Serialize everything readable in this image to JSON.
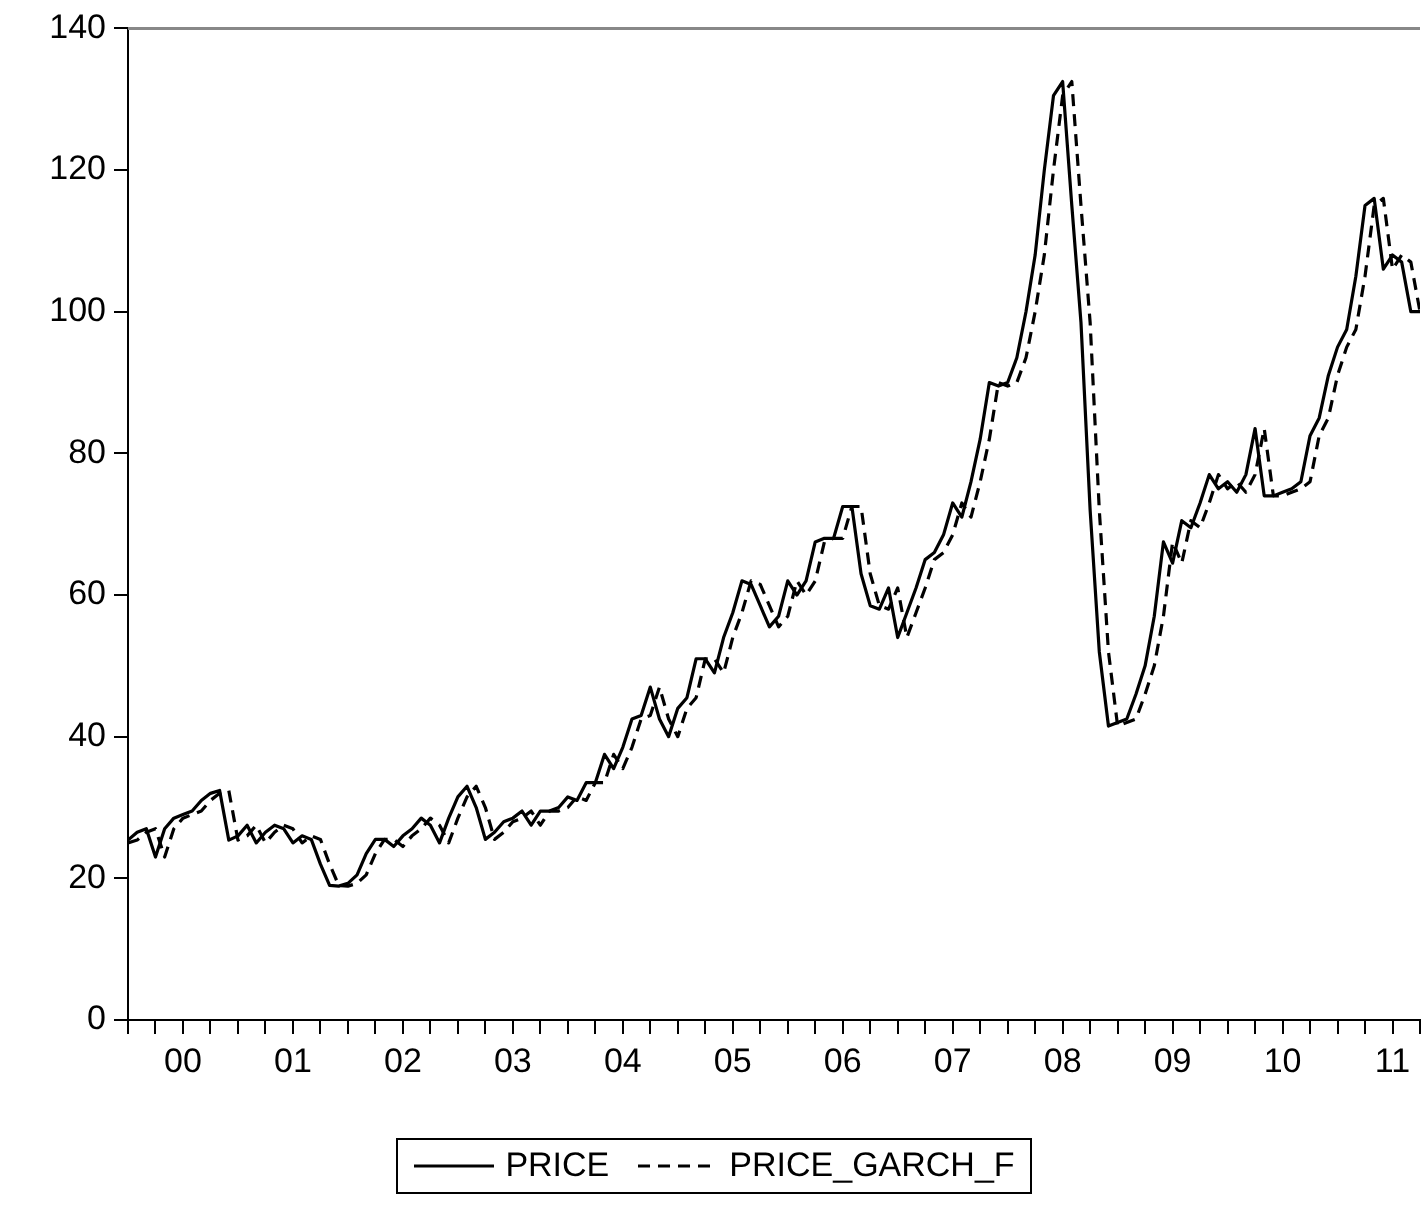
{
  "chart_data": {
    "type": "line",
    "legend": "bottom",
    "x": [
      "2000-01",
      "2000-02",
      "2000-03",
      "2000-04",
      "2000-05",
      "2000-06",
      "2000-07",
      "2000-08",
      "2000-09",
      "2000-10",
      "2000-11",
      "2000-12",
      "2001-01",
      "2001-02",
      "2001-03",
      "2001-04",
      "2001-05",
      "2001-06",
      "2001-07",
      "2001-08",
      "2001-09",
      "2001-10",
      "2001-11",
      "2001-12",
      "2002-01",
      "2002-02",
      "2002-03",
      "2002-04",
      "2002-05",
      "2002-06",
      "2002-07",
      "2002-08",
      "2002-09",
      "2002-10",
      "2002-11",
      "2002-12",
      "2003-01",
      "2003-02",
      "2003-03",
      "2003-04",
      "2003-05",
      "2003-06",
      "2003-07",
      "2003-08",
      "2003-09",
      "2003-10",
      "2003-11",
      "2003-12",
      "2004-01",
      "2004-02",
      "2004-03",
      "2004-04",
      "2004-05",
      "2004-06",
      "2004-07",
      "2004-08",
      "2004-09",
      "2004-10",
      "2004-11",
      "2004-12",
      "2005-01",
      "2005-02",
      "2005-03",
      "2005-04",
      "2005-05",
      "2005-06",
      "2005-07",
      "2005-08",
      "2005-09",
      "2005-10",
      "2005-11",
      "2005-12",
      "2006-01",
      "2006-02",
      "2006-03",
      "2006-04",
      "2006-05",
      "2006-06",
      "2006-07",
      "2006-08",
      "2006-09",
      "2006-10",
      "2006-11",
      "2006-12",
      "2007-01",
      "2007-02",
      "2007-03",
      "2007-04",
      "2007-05",
      "2007-06",
      "2007-07",
      "2007-08",
      "2007-09",
      "2007-10",
      "2007-11",
      "2007-12",
      "2008-01",
      "2008-02",
      "2008-03",
      "2008-04",
      "2008-05",
      "2008-06",
      "2008-07",
      "2008-08",
      "2008-09",
      "2008-10",
      "2008-11",
      "2008-12",
      "2009-01",
      "2009-02",
      "2009-03",
      "2009-04",
      "2009-05",
      "2009-06",
      "2009-07",
      "2009-08",
      "2009-09",
      "2009-10",
      "2009-11",
      "2009-12",
      "2010-01",
      "2010-02",
      "2010-03",
      "2010-04",
      "2010-05",
      "2010-06",
      "2010-07",
      "2010-08",
      "2010-09",
      "2010-10",
      "2010-11",
      "2010-12",
      "2011-01",
      "2011-02",
      "2011-03",
      "2011-04",
      "2011-05",
      "2011-06",
      "2011-07",
      "2011-08",
      "2011-09",
      "2011-10"
    ],
    "series": [
      {
        "name": "PRICE",
        "color": "#000000",
        "line_style": "solid",
        "values": [
          25.4,
          26.5,
          27,
          23,
          27,
          28.5,
          29,
          29.5,
          31,
          32,
          32.4,
          25.4,
          26,
          27.5,
          25,
          26.5,
          27.5,
          27,
          25,
          26,
          25.5,
          22,
          19,
          18.9,
          19.3,
          20.5,
          23.5,
          25.5,
          25.5,
          24.5,
          26,
          27,
          28.5,
          27.5,
          25,
          28.5,
          31.5,
          33,
          30,
          25.5,
          26.5,
          28,
          28.5,
          29.5,
          27.5,
          29.5,
          29.5,
          30,
          31.5,
          31,
          33.5,
          33.5,
          37.5,
          35.5,
          38.5,
          42.5,
          43,
          47,
          42.5,
          40,
          44,
          45.5,
          51,
          51,
          49,
          54,
          57.5,
          62,
          61.5,
          58.5,
          55.5,
          57,
          62,
          60,
          62,
          67.5,
          68,
          68,
          72.5,
          72.5,
          63,
          58.5,
          58,
          61,
          54,
          57.5,
          61,
          65,
          66,
          68.5,
          73,
          71,
          76,
          82,
          90,
          89.5,
          90,
          93.5,
          100,
          108,
          120,
          130.5,
          132.5,
          115,
          98.5,
          72,
          52,
          41.5,
          42,
          42.5,
          46,
          50,
          57,
          67.5,
          64.5,
          70.5,
          69.5,
          73,
          77,
          75,
          76,
          74.5,
          77,
          83.5,
          74,
          74,
          74.5,
          75,
          76,
          82.5,
          85,
          91,
          95,
          97.5,
          105,
          115,
          116,
          106,
          108,
          107,
          100,
          100
        ]
      },
      {
        "name": "PRICE_GARCH_F",
        "color": "#000000",
        "line_style": "dashed",
        "values": [
          25,
          25.4,
          26.5,
          27,
          23,
          27,
          28.5,
          29,
          29.5,
          31,
          32,
          32.4,
          25.4,
          26,
          27.5,
          25,
          26.5,
          27.5,
          27,
          25,
          26,
          25.5,
          22,
          19,
          18.9,
          19.3,
          20.5,
          23.5,
          25.5,
          25.5,
          24.5,
          26,
          27,
          28.5,
          27.5,
          25,
          28.5,
          31.5,
          33,
          30,
          25.5,
          26.5,
          28,
          28.5,
          29.5,
          27.5,
          29.5,
          29.5,
          30,
          31.5,
          31,
          33.5,
          33.5,
          37.5,
          35.5,
          38.5,
          42.5,
          43,
          47,
          42.5,
          40,
          44,
          45.5,
          51,
          51,
          49,
          54,
          57.5,
          62,
          61.5,
          58.5,
          55.5,
          57,
          62,
          60,
          62,
          67.5,
          68,
          68,
          72.5,
          72.5,
          63,
          58.5,
          58,
          61,
          54,
          57.5,
          61,
          65,
          66,
          68.5,
          73,
          71,
          76,
          82,
          90,
          89.5,
          90,
          93.5,
          100,
          108,
          120,
          130.5,
          132.5,
          115,
          98.5,
          72,
          52,
          41.5,
          42,
          42.5,
          46,
          50,
          57,
          67.5,
          64.5,
          70.5,
          69.5,
          73,
          77,
          75,
          76,
          74.5,
          77,
          83.5,
          74,
          74,
          74.5,
          75,
          76,
          82.5,
          85,
          91,
          95,
          97.5,
          105,
          115,
          116,
          106,
          108,
          107,
          100
        ]
      }
    ],
    "xlim": [
      "2000-01",
      "2011-10"
    ],
    "xticks": [
      {
        "value": "2000-01",
        "label": null
      },
      {
        "value": "2000-04",
        "label": null
      },
      {
        "value": "2000-07",
        "label": "00"
      },
      {
        "value": "2000-10",
        "label": null
      },
      {
        "value": "2001-01",
        "label": null
      },
      {
        "value": "2001-04",
        "label": null
      },
      {
        "value": "2001-07",
        "label": "01"
      },
      {
        "value": "2001-10",
        "label": null
      },
      {
        "value": "2002-01",
        "label": null
      },
      {
        "value": "2002-04",
        "label": null
      },
      {
        "value": "2002-07",
        "label": "02"
      },
      {
        "value": "2002-10",
        "label": null
      },
      {
        "value": "2003-01",
        "label": null
      },
      {
        "value": "2003-04",
        "label": null
      },
      {
        "value": "2003-07",
        "label": "03"
      },
      {
        "value": "2003-10",
        "label": null
      },
      {
        "value": "2004-01",
        "label": null
      },
      {
        "value": "2004-04",
        "label": null
      },
      {
        "value": "2004-07",
        "label": "04"
      },
      {
        "value": "2004-10",
        "label": null
      },
      {
        "value": "2005-01",
        "label": null
      },
      {
        "value": "2005-04",
        "label": null
      },
      {
        "value": "2005-07",
        "label": "05"
      },
      {
        "value": "2005-10",
        "label": null
      },
      {
        "value": "2006-01",
        "label": null
      },
      {
        "value": "2006-04",
        "label": null
      },
      {
        "value": "2006-07",
        "label": "06"
      },
      {
        "value": "2006-10",
        "label": null
      },
      {
        "value": "2007-01",
        "label": null
      },
      {
        "value": "2007-04",
        "label": null
      },
      {
        "value": "2007-07",
        "label": "07"
      },
      {
        "value": "2007-10",
        "label": null
      },
      {
        "value": "2008-01",
        "label": null
      },
      {
        "value": "2008-04",
        "label": null
      },
      {
        "value": "2008-07",
        "label": "08"
      },
      {
        "value": "2008-10",
        "label": null
      },
      {
        "value": "2009-01",
        "label": null
      },
      {
        "value": "2009-04",
        "label": null
      },
      {
        "value": "2009-07",
        "label": "09"
      },
      {
        "value": "2009-10",
        "label": null
      },
      {
        "value": "2010-01",
        "label": null
      },
      {
        "value": "2010-04",
        "label": null
      },
      {
        "value": "2010-07",
        "label": "10"
      },
      {
        "value": "2010-10",
        "label": null
      },
      {
        "value": "2011-01",
        "label": null
      },
      {
        "value": "2011-04",
        "label": null
      },
      {
        "value": "2011-07",
        "label": "11"
      },
      {
        "value": "2011-10",
        "label": null
      }
    ],
    "ylim": [
      0,
      140
    ],
    "yticks": [
      0,
      20,
      40,
      60,
      80,
      100,
      120,
      140
    ]
  }
}
